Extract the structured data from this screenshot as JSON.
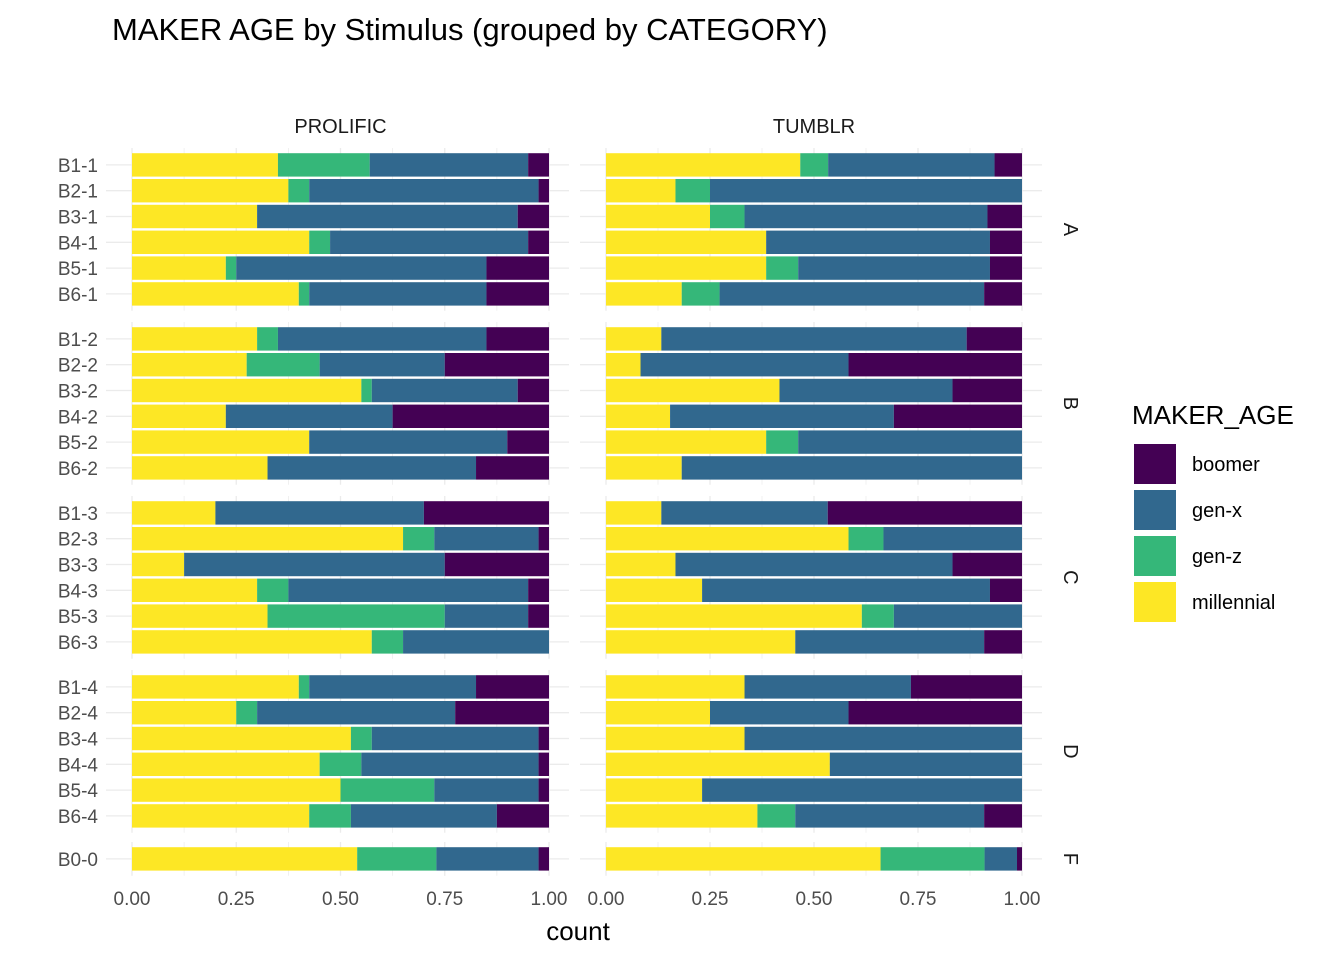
{
  "chart_data": {
    "type": "bar",
    "title": "MAKER AGE by Stimulus (grouped by CATEGORY)",
    "xlabel": "count",
    "ylabel": "",
    "xlim": [
      0,
      1
    ],
    "x_ticks": [
      "0.00",
      "0.25",
      "0.50",
      "0.75",
      "1.00"
    ],
    "x_tick_values": [
      0,
      0.25,
      0.5,
      0.75,
      1.0
    ],
    "orientation": "horizontal",
    "stacked": true,
    "grid": true,
    "legend_position": "right",
    "legend_title": "MAKER_AGE",
    "series": [
      {
        "name": "boomer",
        "color": "#440154"
      },
      {
        "name": "gen-x",
        "color": "#31688E"
      },
      {
        "name": "gen-z",
        "color": "#35B779"
      },
      {
        "name": "millennial",
        "color": "#FDE725"
      }
    ],
    "stack_order_from_left": [
      "millennial",
      "gen-z",
      "gen-x",
      "boomer"
    ],
    "facet_columns": [
      "PROLIFIC",
      "TUMBLR"
    ],
    "facet_rows": [
      {
        "label": "A",
        "stimuli": [
          "B1-1",
          "B2-1",
          "B3-1",
          "B4-1",
          "B5-1",
          "B6-1"
        ]
      },
      {
        "label": "B",
        "stimuli": [
          "B1-2",
          "B2-2",
          "B3-2",
          "B4-2",
          "B5-2",
          "B6-2"
        ]
      },
      {
        "label": "C",
        "stimuli": [
          "B1-3",
          "B2-3",
          "B3-3",
          "B4-3",
          "B5-3",
          "B6-3"
        ]
      },
      {
        "label": "D",
        "stimuli": [
          "B1-4",
          "B2-4",
          "B3-4",
          "B4-4",
          "B5-4",
          "B6-4"
        ]
      },
      {
        "label": "F",
        "stimuli": [
          "B0-0"
        ]
      }
    ],
    "data": {
      "PROLIFIC": {
        "B1-1": {
          "millennial": 0.35,
          "gen-z": 0.22,
          "gen-x": 0.38,
          "boomer": 0.05
        },
        "B2-1": {
          "millennial": 0.375,
          "gen-z": 0.05,
          "gen-x": 0.55,
          "boomer": 0.025
        },
        "B3-1": {
          "millennial": 0.3,
          "gen-z": 0.0,
          "gen-x": 0.625,
          "boomer": 0.075
        },
        "B4-1": {
          "millennial": 0.425,
          "gen-z": 0.05,
          "gen-x": 0.475,
          "boomer": 0.05
        },
        "B5-1": {
          "millennial": 0.225,
          "gen-z": 0.025,
          "gen-x": 0.6,
          "boomer": 0.15
        },
        "B6-1": {
          "millennial": 0.4,
          "gen-z": 0.025,
          "gen-x": 0.425,
          "boomer": 0.15
        },
        "B1-2": {
          "millennial": 0.3,
          "gen-z": 0.05,
          "gen-x": 0.5,
          "boomer": 0.15
        },
        "B2-2": {
          "millennial": 0.275,
          "gen-z": 0.175,
          "gen-x": 0.3,
          "boomer": 0.25
        },
        "B3-2": {
          "millennial": 0.55,
          "gen-z": 0.025,
          "gen-x": 0.35,
          "boomer": 0.075
        },
        "B4-2": {
          "millennial": 0.225,
          "gen-z": 0.0,
          "gen-x": 0.4,
          "boomer": 0.375
        },
        "B5-2": {
          "millennial": 0.425,
          "gen-z": 0.0,
          "gen-x": 0.475,
          "boomer": 0.1
        },
        "B6-2": {
          "millennial": 0.325,
          "gen-z": 0.0,
          "gen-x": 0.5,
          "boomer": 0.175
        },
        "B1-3": {
          "millennial": 0.2,
          "gen-z": 0.0,
          "gen-x": 0.5,
          "boomer": 0.3
        },
        "B2-3": {
          "millennial": 0.65,
          "gen-z": 0.075,
          "gen-x": 0.25,
          "boomer": 0.025
        },
        "B3-3": {
          "millennial": 0.125,
          "gen-z": 0.0,
          "gen-x": 0.625,
          "boomer": 0.25
        },
        "B4-3": {
          "millennial": 0.3,
          "gen-z": 0.075,
          "gen-x": 0.575,
          "boomer": 0.05
        },
        "B5-3": {
          "millennial": 0.325,
          "gen-z": 0.425,
          "gen-x": 0.2,
          "boomer": 0.05
        },
        "B6-3": {
          "millennial": 0.575,
          "gen-z": 0.075,
          "gen-x": 0.35,
          "boomer": 0.0
        },
        "B1-4": {
          "millennial": 0.4,
          "gen-z": 0.025,
          "gen-x": 0.4,
          "boomer": 0.175
        },
        "B2-4": {
          "millennial": 0.25,
          "gen-z": 0.05,
          "gen-x": 0.475,
          "boomer": 0.225
        },
        "B3-4": {
          "millennial": 0.525,
          "gen-z": 0.05,
          "gen-x": 0.4,
          "boomer": 0.025
        },
        "B4-4": {
          "millennial": 0.45,
          "gen-z": 0.1,
          "gen-x": 0.425,
          "boomer": 0.025
        },
        "B5-4": {
          "millennial": 0.5,
          "gen-z": 0.225,
          "gen-x": 0.25,
          "boomer": 0.025
        },
        "B6-4": {
          "millennial": 0.425,
          "gen-z": 0.1,
          "gen-x": 0.35,
          "boomer": 0.125
        },
        "B0-0": {
          "millennial": 0.54,
          "gen-z": 0.19,
          "gen-x": 0.245,
          "boomer": 0.025
        }
      },
      "TUMBLR": {
        "B1-1": {
          "millennial": 0.467,
          "gen-z": 0.067,
          "gen-x": 0.4,
          "boomer": 0.066
        },
        "B2-1": {
          "millennial": 0.167,
          "gen-z": 0.083,
          "gen-x": 0.75,
          "boomer": 0.0
        },
        "B3-1": {
          "millennial": 0.25,
          "gen-z": 0.083,
          "gen-x": 0.584,
          "boomer": 0.083
        },
        "B4-1": {
          "millennial": 0.385,
          "gen-z": 0.0,
          "gen-x": 0.538,
          "boomer": 0.077
        },
        "B5-1": {
          "millennial": 0.385,
          "gen-z": 0.077,
          "gen-x": 0.461,
          "boomer": 0.077
        },
        "B6-1": {
          "millennial": 0.182,
          "gen-z": 0.091,
          "gen-x": 0.636,
          "boomer": 0.091
        },
        "B1-2": {
          "millennial": 0.133,
          "gen-z": 0.0,
          "gen-x": 0.734,
          "boomer": 0.133
        },
        "B2-2": {
          "millennial": 0.083,
          "gen-z": 0.0,
          "gen-x": 0.5,
          "boomer": 0.417
        },
        "B3-2": {
          "millennial": 0.417,
          "gen-z": 0.0,
          "gen-x": 0.416,
          "boomer": 0.167
        },
        "B4-2": {
          "millennial": 0.154,
          "gen-z": 0.0,
          "gen-x": 0.538,
          "boomer": 0.308
        },
        "B5-2": {
          "millennial": 0.385,
          "gen-z": 0.077,
          "gen-x": 0.538,
          "boomer": 0.0
        },
        "B6-2": {
          "millennial": 0.182,
          "gen-z": 0.0,
          "gen-x": 0.818,
          "boomer": 0.0
        },
        "B1-3": {
          "millennial": 0.133,
          "gen-z": 0.0,
          "gen-x": 0.4,
          "boomer": 0.467
        },
        "B2-3": {
          "millennial": 0.583,
          "gen-z": 0.084,
          "gen-x": 0.333,
          "boomer": 0.0
        },
        "B3-3": {
          "millennial": 0.167,
          "gen-z": 0.0,
          "gen-x": 0.666,
          "boomer": 0.167
        },
        "B4-3": {
          "millennial": 0.231,
          "gen-z": 0.0,
          "gen-x": 0.692,
          "boomer": 0.077
        },
        "B5-3": {
          "millennial": 0.615,
          "gen-z": 0.077,
          "gen-x": 0.308,
          "boomer": 0.0
        },
        "B6-3": {
          "millennial": 0.455,
          "gen-z": 0.0,
          "gen-x": 0.454,
          "boomer": 0.091
        },
        "B1-4": {
          "millennial": 0.333,
          "gen-z": 0.0,
          "gen-x": 0.4,
          "boomer": 0.267
        },
        "B2-4": {
          "millennial": 0.25,
          "gen-z": 0.0,
          "gen-x": 0.333,
          "boomer": 0.417
        },
        "B3-4": {
          "millennial": 0.333,
          "gen-z": 0.0,
          "gen-x": 0.667,
          "boomer": 0.0
        },
        "B4-4": {
          "millennial": 0.538,
          "gen-z": 0.0,
          "gen-x": 0.462,
          "boomer": 0.0
        },
        "B5-4": {
          "millennial": 0.231,
          "gen-z": 0.0,
          "gen-x": 0.769,
          "boomer": 0.0
        },
        "B6-4": {
          "millennial": 0.364,
          "gen-z": 0.091,
          "gen-x": 0.454,
          "boomer": 0.091
        },
        "B0-0": {
          "millennial": 0.66,
          "gen-z": 0.25,
          "gen-x": 0.078,
          "boomer": 0.012
        }
      }
    }
  }
}
